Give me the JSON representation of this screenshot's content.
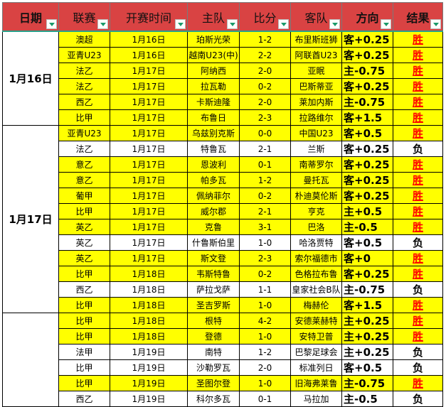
{
  "headers": [
    "日期",
    "联赛",
    "开赛时间",
    "主队",
    "比分",
    "客队",
    "方向",
    "结果"
  ],
  "colors": {
    "header": "#d94343",
    "win_row": "#ffff00",
    "win_text": "#ff0000"
  },
  "groups": [
    {
      "date": "1月16日",
      "rows": [
        {
          "league": "澳超",
          "time": "1月16日",
          "home": "珀斯光荣",
          "score": "1-2",
          "away": "布里斯班狮",
          "dir": "客+0.25",
          "result": "胜",
          "win": true
        },
        {
          "league": "亚青U23",
          "time": "1月16日",
          "home": "越南U23(中)",
          "score": "2-2",
          "away": "阿联酋U23",
          "dir": "客+0.25",
          "result": "胜",
          "win": true
        },
        {
          "league": "法乙",
          "time": "1月17日",
          "home": "阿纳西",
          "score": "2-0",
          "away": "亚眠",
          "dir": "主-0.75",
          "result": "胜",
          "win": true
        },
        {
          "league": "法乙",
          "time": "1月17日",
          "home": "拉瓦勒",
          "score": "0-2",
          "away": "巴斯蒂亚",
          "dir": "客+0.25",
          "result": "胜",
          "win": true
        },
        {
          "league": "西乙",
          "time": "1月17日",
          "home": "卡斯迪隆",
          "score": "2-0",
          "away": "莱加内斯",
          "dir": "主-0.75",
          "result": "胜",
          "win": true
        },
        {
          "league": "比甲",
          "time": "1月17日",
          "home": "布鲁日",
          "score": "2-3",
          "away": "拉路维尔",
          "dir": "客+1.5",
          "result": "胜",
          "win": true
        }
      ]
    },
    {
      "date": "1月17日",
      "rows": [
        {
          "league": "亚青U23",
          "time": "1月17日",
          "home": "乌兹别克斯",
          "score": "0-0",
          "away": "中国U23",
          "dir": "客+0.5",
          "result": "胜",
          "win": true
        },
        {
          "league": "法乙",
          "time": "1月17日",
          "home": "特鲁瓦",
          "score": "2-1",
          "away": "兰斯",
          "dir": "客+0.25",
          "result": "负",
          "win": false
        },
        {
          "league": "意乙",
          "time": "1月17日",
          "home": "恩波利",
          "score": "0-1",
          "away": "南蒂罗尔",
          "dir": "客+0.25",
          "result": "胜",
          "win": true
        },
        {
          "league": "意乙",
          "time": "1月17日",
          "home": "帕多瓦",
          "score": "1-2",
          "away": "曼托瓦",
          "dir": "客+0.25",
          "result": "胜",
          "win": true
        },
        {
          "league": "葡甲",
          "time": "1月17日",
          "home": "佩纳菲尔",
          "score": "0-2",
          "away": "朴迪莫伦斯",
          "dir": "客+0.25",
          "result": "胜",
          "win": true
        },
        {
          "league": "比甲",
          "time": "1月17日",
          "home": "威尔郡",
          "score": "2-1",
          "away": "亨克",
          "dir": "主+0.5",
          "result": "胜",
          "win": true
        },
        {
          "league": "英乙",
          "time": "1月17日",
          "home": "克鲁",
          "score": "3-1",
          "away": "巴洛",
          "dir": "主-0.5",
          "result": "胜",
          "win": true
        },
        {
          "league": "英乙",
          "time": "1月17日",
          "home": "什鲁斯伯里",
          "score": "1-0",
          "away": "哈洛贾特",
          "dir": "客+0.5",
          "result": "负",
          "win": false
        },
        {
          "league": "英乙",
          "time": "1月17日",
          "home": "斯文登",
          "score": "2-3",
          "away": "索尔福德市",
          "dir": "客+0",
          "result": "胜",
          "win": true
        },
        {
          "league": "比甲",
          "time": "1月18日",
          "home": "韦斯特鲁",
          "score": "0-2",
          "away": "色格拉布鲁",
          "dir": "客+0.25",
          "result": "胜",
          "win": true
        },
        {
          "league": "西乙",
          "time": "1月18日",
          "home": "萨拉戈萨",
          "score": "1-1",
          "away": "皇家社会B队",
          "dir": "主-0.75",
          "result": "负",
          "win": false
        },
        {
          "league": "比甲",
          "time": "1月18日",
          "home": "圣吉罗斯",
          "score": "1-0",
          "away": "梅赫伦",
          "dir": "客+1.5",
          "result": "胜",
          "win": true
        }
      ]
    },
    {
      "date": "",
      "rows": [
        {
          "league": "比甲",
          "time": "1月18日",
          "home": "根特",
          "score": "4-2",
          "away": "安德莱赫特",
          "dir": "主+0.25",
          "result": "胜",
          "win": true
        },
        {
          "league": "比甲",
          "time": "1月18日",
          "home": "登德",
          "score": "1-0",
          "away": "安特卫普",
          "dir": "主+0.25",
          "result": "胜",
          "win": true
        },
        {
          "league": "法甲",
          "time": "1月19日",
          "home": "南特",
          "score": "1-2",
          "away": "巴黎足球会",
          "dir": "主+0.25",
          "result": "负",
          "win": false
        },
        {
          "league": "比甲",
          "time": "1月19日",
          "home": "沙勒罗瓦",
          "score": "2-0",
          "away": "标准列日",
          "dir": "客+0.5",
          "result": "负",
          "win": false
        },
        {
          "league": "比甲",
          "time": "1月19日",
          "home": "圣图尔登",
          "score": "1-0",
          "away": "旧海弗莱鲁",
          "dir": "主-0.75",
          "result": "胜",
          "win": true
        },
        {
          "league": "西乙",
          "time": "1月19日",
          "home": "科尔多瓦",
          "score": "0-1",
          "away": "马拉加",
          "dir": "主-0.5",
          "result": "负",
          "win": false
        }
      ]
    }
  ]
}
